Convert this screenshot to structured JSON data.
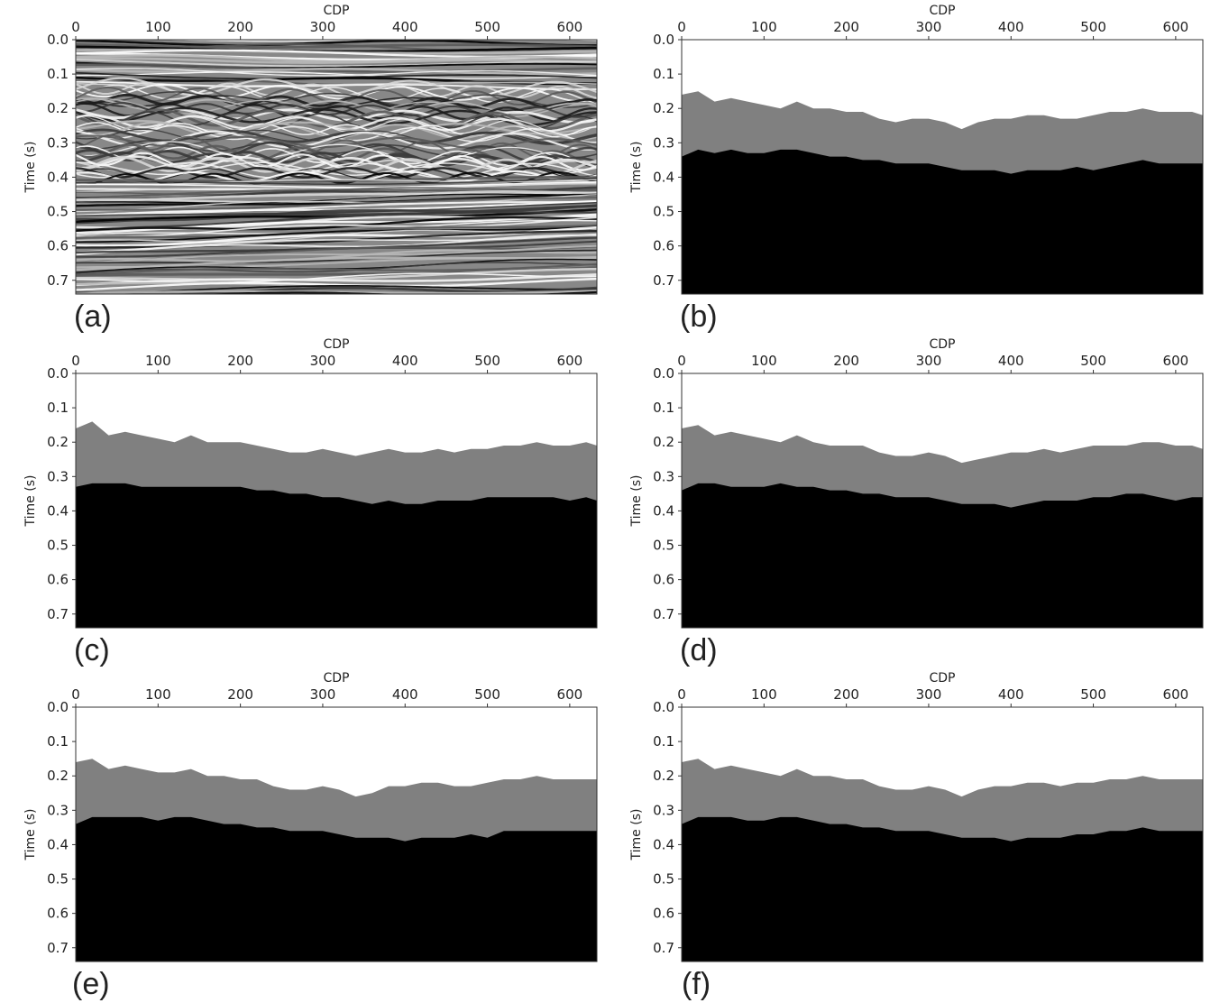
{
  "chart_data": [
    {
      "panel_label": "(a)",
      "type": "heatmap",
      "content": "seismic",
      "xlabel": "CDP",
      "ylabel": "Time (s)",
      "xlim": [
        0,
        633
      ],
      "ylim": [
        0.0,
        0.74
      ],
      "xticks": [
        "0",
        "100",
        "200",
        "300",
        "400",
        "500",
        "600"
      ],
      "yticks": [
        "0.0",
        "0.1",
        "0.2",
        "0.3",
        "0.4",
        "0.5",
        "0.6",
        "0.7"
      ],
      "colors": {
        "background": "#888888"
      }
    },
    {
      "panel_label": "(b)",
      "type": "area",
      "content": "labels",
      "xlabel": "CDP",
      "ylabel": "Time (s)",
      "xlim": [
        0,
        633
      ],
      "ylim": [
        0.0,
        0.74
      ],
      "xticks": [
        "0",
        "100",
        "200",
        "300",
        "400",
        "500",
        "600"
      ],
      "yticks": [
        "0.0",
        "0.1",
        "0.2",
        "0.3",
        "0.4",
        "0.5",
        "0.6",
        "0.7"
      ],
      "colors": {
        "top": "#ffffff",
        "middle": "#808080",
        "bottom": "#000000"
      },
      "x": [
        0,
        20,
        40,
        60,
        80,
        100,
        120,
        140,
        160,
        180,
        200,
        220,
        240,
        260,
        280,
        300,
        320,
        340,
        360,
        380,
        400,
        420,
        440,
        460,
        480,
        500,
        520,
        540,
        560,
        580,
        600,
        620,
        633
      ],
      "upper_boundary": [
        0.16,
        0.15,
        0.18,
        0.17,
        0.18,
        0.19,
        0.2,
        0.18,
        0.2,
        0.2,
        0.21,
        0.21,
        0.23,
        0.24,
        0.23,
        0.23,
        0.24,
        0.26,
        0.24,
        0.23,
        0.23,
        0.22,
        0.22,
        0.23,
        0.23,
        0.22,
        0.21,
        0.21,
        0.2,
        0.21,
        0.21,
        0.21,
        0.22
      ],
      "lower_boundary": [
        0.34,
        0.32,
        0.33,
        0.32,
        0.33,
        0.33,
        0.32,
        0.32,
        0.33,
        0.34,
        0.34,
        0.35,
        0.35,
        0.36,
        0.36,
        0.36,
        0.37,
        0.38,
        0.38,
        0.38,
        0.39,
        0.38,
        0.38,
        0.38,
        0.37,
        0.38,
        0.37,
        0.36,
        0.35,
        0.36,
        0.36,
        0.36,
        0.36
      ]
    },
    {
      "panel_label": "(c)",
      "type": "area",
      "content": "labels",
      "xlabel": "CDP",
      "ylabel": "Time (s)",
      "xlim": [
        0,
        633
      ],
      "ylim": [
        0.0,
        0.74
      ],
      "xticks": [
        "0",
        "100",
        "200",
        "300",
        "400",
        "500",
        "600"
      ],
      "yticks": [
        "0.0",
        "0.1",
        "0.2",
        "0.3",
        "0.4",
        "0.5",
        "0.6",
        "0.7"
      ],
      "colors": {
        "top": "#ffffff",
        "middle": "#808080",
        "bottom": "#000000"
      },
      "x": [
        0,
        20,
        40,
        60,
        80,
        100,
        120,
        140,
        160,
        180,
        200,
        220,
        240,
        260,
        280,
        300,
        320,
        340,
        360,
        380,
        400,
        420,
        440,
        460,
        480,
        500,
        520,
        540,
        560,
        580,
        600,
        620,
        633
      ],
      "upper_boundary": [
        0.16,
        0.14,
        0.18,
        0.17,
        0.18,
        0.19,
        0.2,
        0.18,
        0.2,
        0.2,
        0.2,
        0.21,
        0.22,
        0.23,
        0.23,
        0.22,
        0.23,
        0.24,
        0.23,
        0.22,
        0.23,
        0.23,
        0.22,
        0.23,
        0.22,
        0.22,
        0.21,
        0.21,
        0.2,
        0.21,
        0.21,
        0.2,
        0.21
      ],
      "lower_boundary": [
        0.33,
        0.32,
        0.32,
        0.32,
        0.33,
        0.33,
        0.33,
        0.33,
        0.33,
        0.33,
        0.33,
        0.34,
        0.34,
        0.35,
        0.35,
        0.36,
        0.36,
        0.37,
        0.38,
        0.37,
        0.38,
        0.38,
        0.37,
        0.37,
        0.37,
        0.36,
        0.36,
        0.36,
        0.36,
        0.36,
        0.37,
        0.36,
        0.37
      ]
    },
    {
      "panel_label": "(d)",
      "type": "area",
      "content": "labels",
      "xlabel": "CDP",
      "ylabel": "Time (s)",
      "xlim": [
        0,
        633
      ],
      "ylim": [
        0.0,
        0.74
      ],
      "xticks": [
        "0",
        "100",
        "200",
        "300",
        "400",
        "500",
        "600"
      ],
      "yticks": [
        "0.0",
        "0.1",
        "0.2",
        "0.3",
        "0.4",
        "0.5",
        "0.6",
        "0.7"
      ],
      "colors": {
        "top": "#ffffff",
        "middle": "#808080",
        "bottom": "#000000"
      },
      "x": [
        0,
        20,
        40,
        60,
        80,
        100,
        120,
        140,
        160,
        180,
        200,
        220,
        240,
        260,
        280,
        300,
        320,
        340,
        360,
        380,
        400,
        420,
        440,
        460,
        480,
        500,
        520,
        540,
        560,
        580,
        600,
        620,
        633
      ],
      "upper_boundary": [
        0.16,
        0.15,
        0.18,
        0.17,
        0.18,
        0.19,
        0.2,
        0.18,
        0.2,
        0.21,
        0.21,
        0.21,
        0.23,
        0.24,
        0.24,
        0.23,
        0.24,
        0.26,
        0.25,
        0.24,
        0.23,
        0.23,
        0.22,
        0.23,
        0.22,
        0.21,
        0.21,
        0.21,
        0.2,
        0.2,
        0.21,
        0.21,
        0.22
      ],
      "lower_boundary": [
        0.34,
        0.32,
        0.32,
        0.33,
        0.33,
        0.33,
        0.32,
        0.33,
        0.33,
        0.34,
        0.34,
        0.35,
        0.35,
        0.36,
        0.36,
        0.36,
        0.37,
        0.38,
        0.38,
        0.38,
        0.39,
        0.38,
        0.37,
        0.37,
        0.37,
        0.36,
        0.36,
        0.35,
        0.35,
        0.36,
        0.37,
        0.36,
        0.36
      ]
    },
    {
      "panel_label": "(e)",
      "type": "area",
      "content": "labels",
      "xlabel": "CDP",
      "ylabel": "Time (s)",
      "xlim": [
        0,
        633
      ],
      "ylim": [
        0.0,
        0.74
      ],
      "xticks": [
        "0",
        "100",
        "200",
        "300",
        "400",
        "500",
        "600"
      ],
      "yticks": [
        "0.0",
        "0.1",
        "0.2",
        "0.3",
        "0.4",
        "0.5",
        "0.6",
        "0.7"
      ],
      "colors": {
        "top": "#ffffff",
        "middle": "#808080",
        "bottom": "#000000"
      },
      "x": [
        0,
        20,
        40,
        60,
        80,
        100,
        120,
        140,
        160,
        180,
        200,
        220,
        240,
        260,
        280,
        300,
        320,
        340,
        360,
        380,
        400,
        420,
        440,
        460,
        480,
        500,
        520,
        540,
        560,
        580,
        600,
        620,
        633
      ],
      "upper_boundary": [
        0.16,
        0.15,
        0.18,
        0.17,
        0.18,
        0.19,
        0.19,
        0.18,
        0.2,
        0.2,
        0.21,
        0.21,
        0.23,
        0.24,
        0.24,
        0.23,
        0.24,
        0.26,
        0.25,
        0.23,
        0.23,
        0.22,
        0.22,
        0.23,
        0.23,
        0.22,
        0.21,
        0.21,
        0.2,
        0.21,
        0.21,
        0.21,
        0.21
      ],
      "lower_boundary": [
        0.34,
        0.32,
        0.32,
        0.32,
        0.32,
        0.33,
        0.32,
        0.32,
        0.33,
        0.34,
        0.34,
        0.35,
        0.35,
        0.36,
        0.36,
        0.36,
        0.37,
        0.38,
        0.38,
        0.38,
        0.39,
        0.38,
        0.38,
        0.38,
        0.37,
        0.38,
        0.36,
        0.36,
        0.36,
        0.36,
        0.36,
        0.36,
        0.36
      ]
    },
    {
      "panel_label": "(f)",
      "type": "area",
      "content": "labels",
      "xlabel": "CDP",
      "ylabel": "Time (s)",
      "xlim": [
        0,
        633
      ],
      "ylim": [
        0.0,
        0.74
      ],
      "xticks": [
        "0",
        "100",
        "200",
        "300",
        "400",
        "500",
        "600"
      ],
      "yticks": [
        "0.0",
        "0.1",
        "0.2",
        "0.3",
        "0.4",
        "0.5",
        "0.6",
        "0.7"
      ],
      "colors": {
        "top": "#ffffff",
        "middle": "#808080",
        "bottom": "#000000"
      },
      "x": [
        0,
        20,
        40,
        60,
        80,
        100,
        120,
        140,
        160,
        180,
        200,
        220,
        240,
        260,
        280,
        300,
        320,
        340,
        360,
        380,
        400,
        420,
        440,
        460,
        480,
        500,
        520,
        540,
        560,
        580,
        600,
        620,
        633
      ],
      "upper_boundary": [
        0.16,
        0.15,
        0.18,
        0.17,
        0.18,
        0.19,
        0.2,
        0.18,
        0.2,
        0.2,
        0.21,
        0.21,
        0.23,
        0.24,
        0.24,
        0.23,
        0.24,
        0.26,
        0.24,
        0.23,
        0.23,
        0.22,
        0.22,
        0.23,
        0.22,
        0.22,
        0.21,
        0.21,
        0.2,
        0.21,
        0.21,
        0.21,
        0.21
      ],
      "lower_boundary": [
        0.34,
        0.32,
        0.32,
        0.32,
        0.33,
        0.33,
        0.32,
        0.32,
        0.33,
        0.34,
        0.34,
        0.35,
        0.35,
        0.36,
        0.36,
        0.36,
        0.37,
        0.38,
        0.38,
        0.38,
        0.39,
        0.38,
        0.38,
        0.38,
        0.37,
        0.37,
        0.36,
        0.36,
        0.35,
        0.36,
        0.36,
        0.36,
        0.36
      ]
    }
  ]
}
